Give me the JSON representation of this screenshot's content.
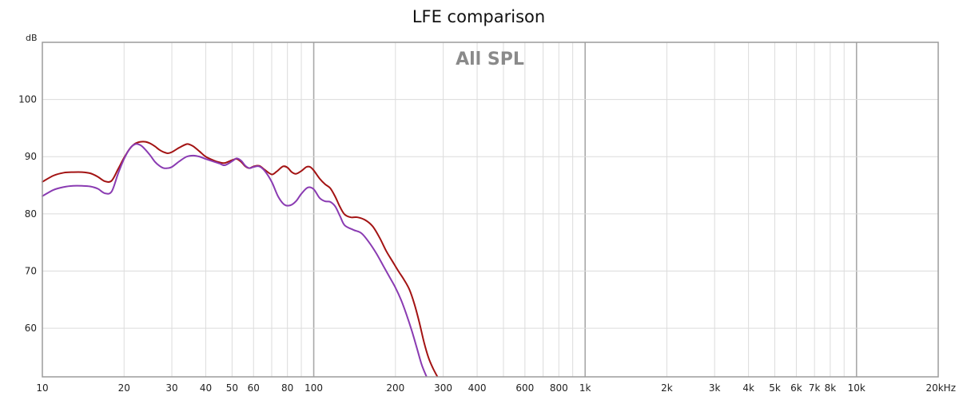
{
  "chart_data": {
    "type": "line",
    "title": "LFE comparison",
    "watermark": "All SPL",
    "ylabel": "dB",
    "xscale": "log",
    "xlim": [
      10,
      20000
    ],
    "ylim": [
      51.5,
      110
    ],
    "grid": true,
    "x_ticks": [
      {
        "value": 10,
        "label": "10"
      },
      {
        "value": 20,
        "label": "20"
      },
      {
        "value": 30,
        "label": "30"
      },
      {
        "value": 40,
        "label": "40"
      },
      {
        "value": 50,
        "label": "50"
      },
      {
        "value": 60,
        "label": "60"
      },
      {
        "value": 80,
        "label": "80"
      },
      {
        "value": 100,
        "label": "100"
      },
      {
        "value": 200,
        "label": "200"
      },
      {
        "value": 300,
        "label": "300"
      },
      {
        "value": 400,
        "label": "400"
      },
      {
        "value": 600,
        "label": "600"
      },
      {
        "value": 800,
        "label": "800"
      },
      {
        "value": 1000,
        "label": "1k"
      },
      {
        "value": 2000,
        "label": "2k"
      },
      {
        "value": 3000,
        "label": "3k"
      },
      {
        "value": 4000,
        "label": "4k"
      },
      {
        "value": 5000,
        "label": "5k"
      },
      {
        "value": 6000,
        "label": "6k"
      },
      {
        "value": 7000,
        "label": "7k"
      },
      {
        "value": 8000,
        "label": "8k"
      },
      {
        "value": 10000,
        "label": "10k"
      },
      {
        "value": 20000,
        "label": "20kHz"
      }
    ],
    "y_ticks": [
      {
        "value": 60,
        "label": "60"
      },
      {
        "value": 70,
        "label": "70"
      },
      {
        "value": 80,
        "label": "80"
      },
      {
        "value": 90,
        "label": "90"
      },
      {
        "value": 100,
        "label": "100"
      }
    ],
    "series": [
      {
        "color": "#a31313",
        "points": [
          [
            10,
            85.6
          ],
          [
            11,
            86.7
          ],
          [
            12,
            87.2
          ],
          [
            13,
            87.3
          ],
          [
            14,
            87.3
          ],
          [
            15,
            87.1
          ],
          [
            16,
            86.5
          ],
          [
            17,
            85.7
          ],
          [
            18,
            85.8
          ],
          [
            19,
            87.8
          ],
          [
            20,
            89.8
          ],
          [
            21,
            91.4
          ],
          [
            22,
            92.3
          ],
          [
            23,
            92.6
          ],
          [
            24,
            92.6
          ],
          [
            25,
            92.3
          ],
          [
            26,
            91.8
          ],
          [
            27,
            91.2
          ],
          [
            28,
            90.8
          ],
          [
            29,
            90.6
          ],
          [
            30,
            90.8
          ],
          [
            32,
            91.6
          ],
          [
            34,
            92.2
          ],
          [
            35,
            92.1
          ],
          [
            36,
            91.8
          ],
          [
            38,
            90.9
          ],
          [
            40,
            90.0
          ],
          [
            43,
            89.3
          ],
          [
            45,
            89.0
          ],
          [
            47,
            88.9
          ],
          [
            50,
            89.4
          ],
          [
            52,
            89.6
          ],
          [
            54,
            89.1
          ],
          [
            56,
            88.3
          ],
          [
            58,
            88.0
          ],
          [
            60,
            88.3
          ],
          [
            63,
            88.4
          ],
          [
            66,
            87.7
          ],
          [
            70,
            86.9
          ],
          [
            73,
            87.4
          ],
          [
            77,
            88.3
          ],
          [
            80,
            88.1
          ],
          [
            83,
            87.3
          ],
          [
            86,
            87.0
          ],
          [
            90,
            87.5
          ],
          [
            94,
            88.2
          ],
          [
            97,
            88.2
          ],
          [
            100,
            87.6
          ],
          [
            105,
            86.2
          ],
          [
            110,
            85.2
          ],
          [
            115,
            84.5
          ],
          [
            120,
            83.0
          ],
          [
            125,
            81.2
          ],
          [
            130,
            79.9
          ],
          [
            137,
            79.4
          ],
          [
            145,
            79.4
          ],
          [
            155,
            78.9
          ],
          [
            165,
            77.8
          ],
          [
            175,
            75.8
          ],
          [
            185,
            73.5
          ],
          [
            195,
            71.7
          ],
          [
            205,
            70.0
          ],
          [
            215,
            68.5
          ],
          [
            225,
            66.8
          ],
          [
            235,
            64.2
          ],
          [
            245,
            61.0
          ],
          [
            255,
            57.5
          ],
          [
            265,
            54.8
          ],
          [
            275,
            53.0
          ],
          [
            285,
            51.6
          ]
        ]
      },
      {
        "color": "#8a3bb2",
        "points": [
          [
            10,
            83.1
          ],
          [
            11,
            84.2
          ],
          [
            12,
            84.7
          ],
          [
            13,
            84.9
          ],
          [
            14,
            84.9
          ],
          [
            15,
            84.8
          ],
          [
            16,
            84.4
          ],
          [
            17,
            83.6
          ],
          [
            18,
            83.9
          ],
          [
            19,
            87.0
          ],
          [
            20,
            89.6
          ],
          [
            21,
            91.4
          ],
          [
            22,
            92.2
          ],
          [
            23,
            92.0
          ],
          [
            24,
            91.2
          ],
          [
            25,
            90.2
          ],
          [
            26,
            89.1
          ],
          [
            27,
            88.4
          ],
          [
            28,
            88.0
          ],
          [
            29,
            88.0
          ],
          [
            30,
            88.2
          ],
          [
            32,
            89.2
          ],
          [
            34,
            90.0
          ],
          [
            36,
            90.2
          ],
          [
            38,
            90.0
          ],
          [
            40,
            89.6
          ],
          [
            43,
            89.1
          ],
          [
            45,
            88.8
          ],
          [
            47,
            88.5
          ],
          [
            50,
            89.2
          ],
          [
            52,
            89.7
          ],
          [
            54,
            89.3
          ],
          [
            56,
            88.4
          ],
          [
            58,
            88.0
          ],
          [
            60,
            88.2
          ],
          [
            63,
            88.3
          ],
          [
            66,
            87.5
          ],
          [
            70,
            85.6
          ],
          [
            74,
            83.0
          ],
          [
            78,
            81.6
          ],
          [
            82,
            81.5
          ],
          [
            86,
            82.2
          ],
          [
            90,
            83.5
          ],
          [
            95,
            84.6
          ],
          [
            100,
            84.3
          ],
          [
            105,
            82.8
          ],
          [
            110,
            82.2
          ],
          [
            115,
            82.1
          ],
          [
            120,
            81.3
          ],
          [
            125,
            79.6
          ],
          [
            130,
            78.0
          ],
          [
            140,
            77.2
          ],
          [
            150,
            76.6
          ],
          [
            160,
            75.0
          ],
          [
            170,
            73.1
          ],
          [
            180,
            71.0
          ],
          [
            190,
            69.0
          ],
          [
            200,
            67.1
          ],
          [
            210,
            64.9
          ],
          [
            220,
            62.3
          ],
          [
            230,
            59.5
          ],
          [
            240,
            56.5
          ],
          [
            250,
            53.6
          ],
          [
            260,
            51.6
          ]
        ]
      }
    ]
  }
}
